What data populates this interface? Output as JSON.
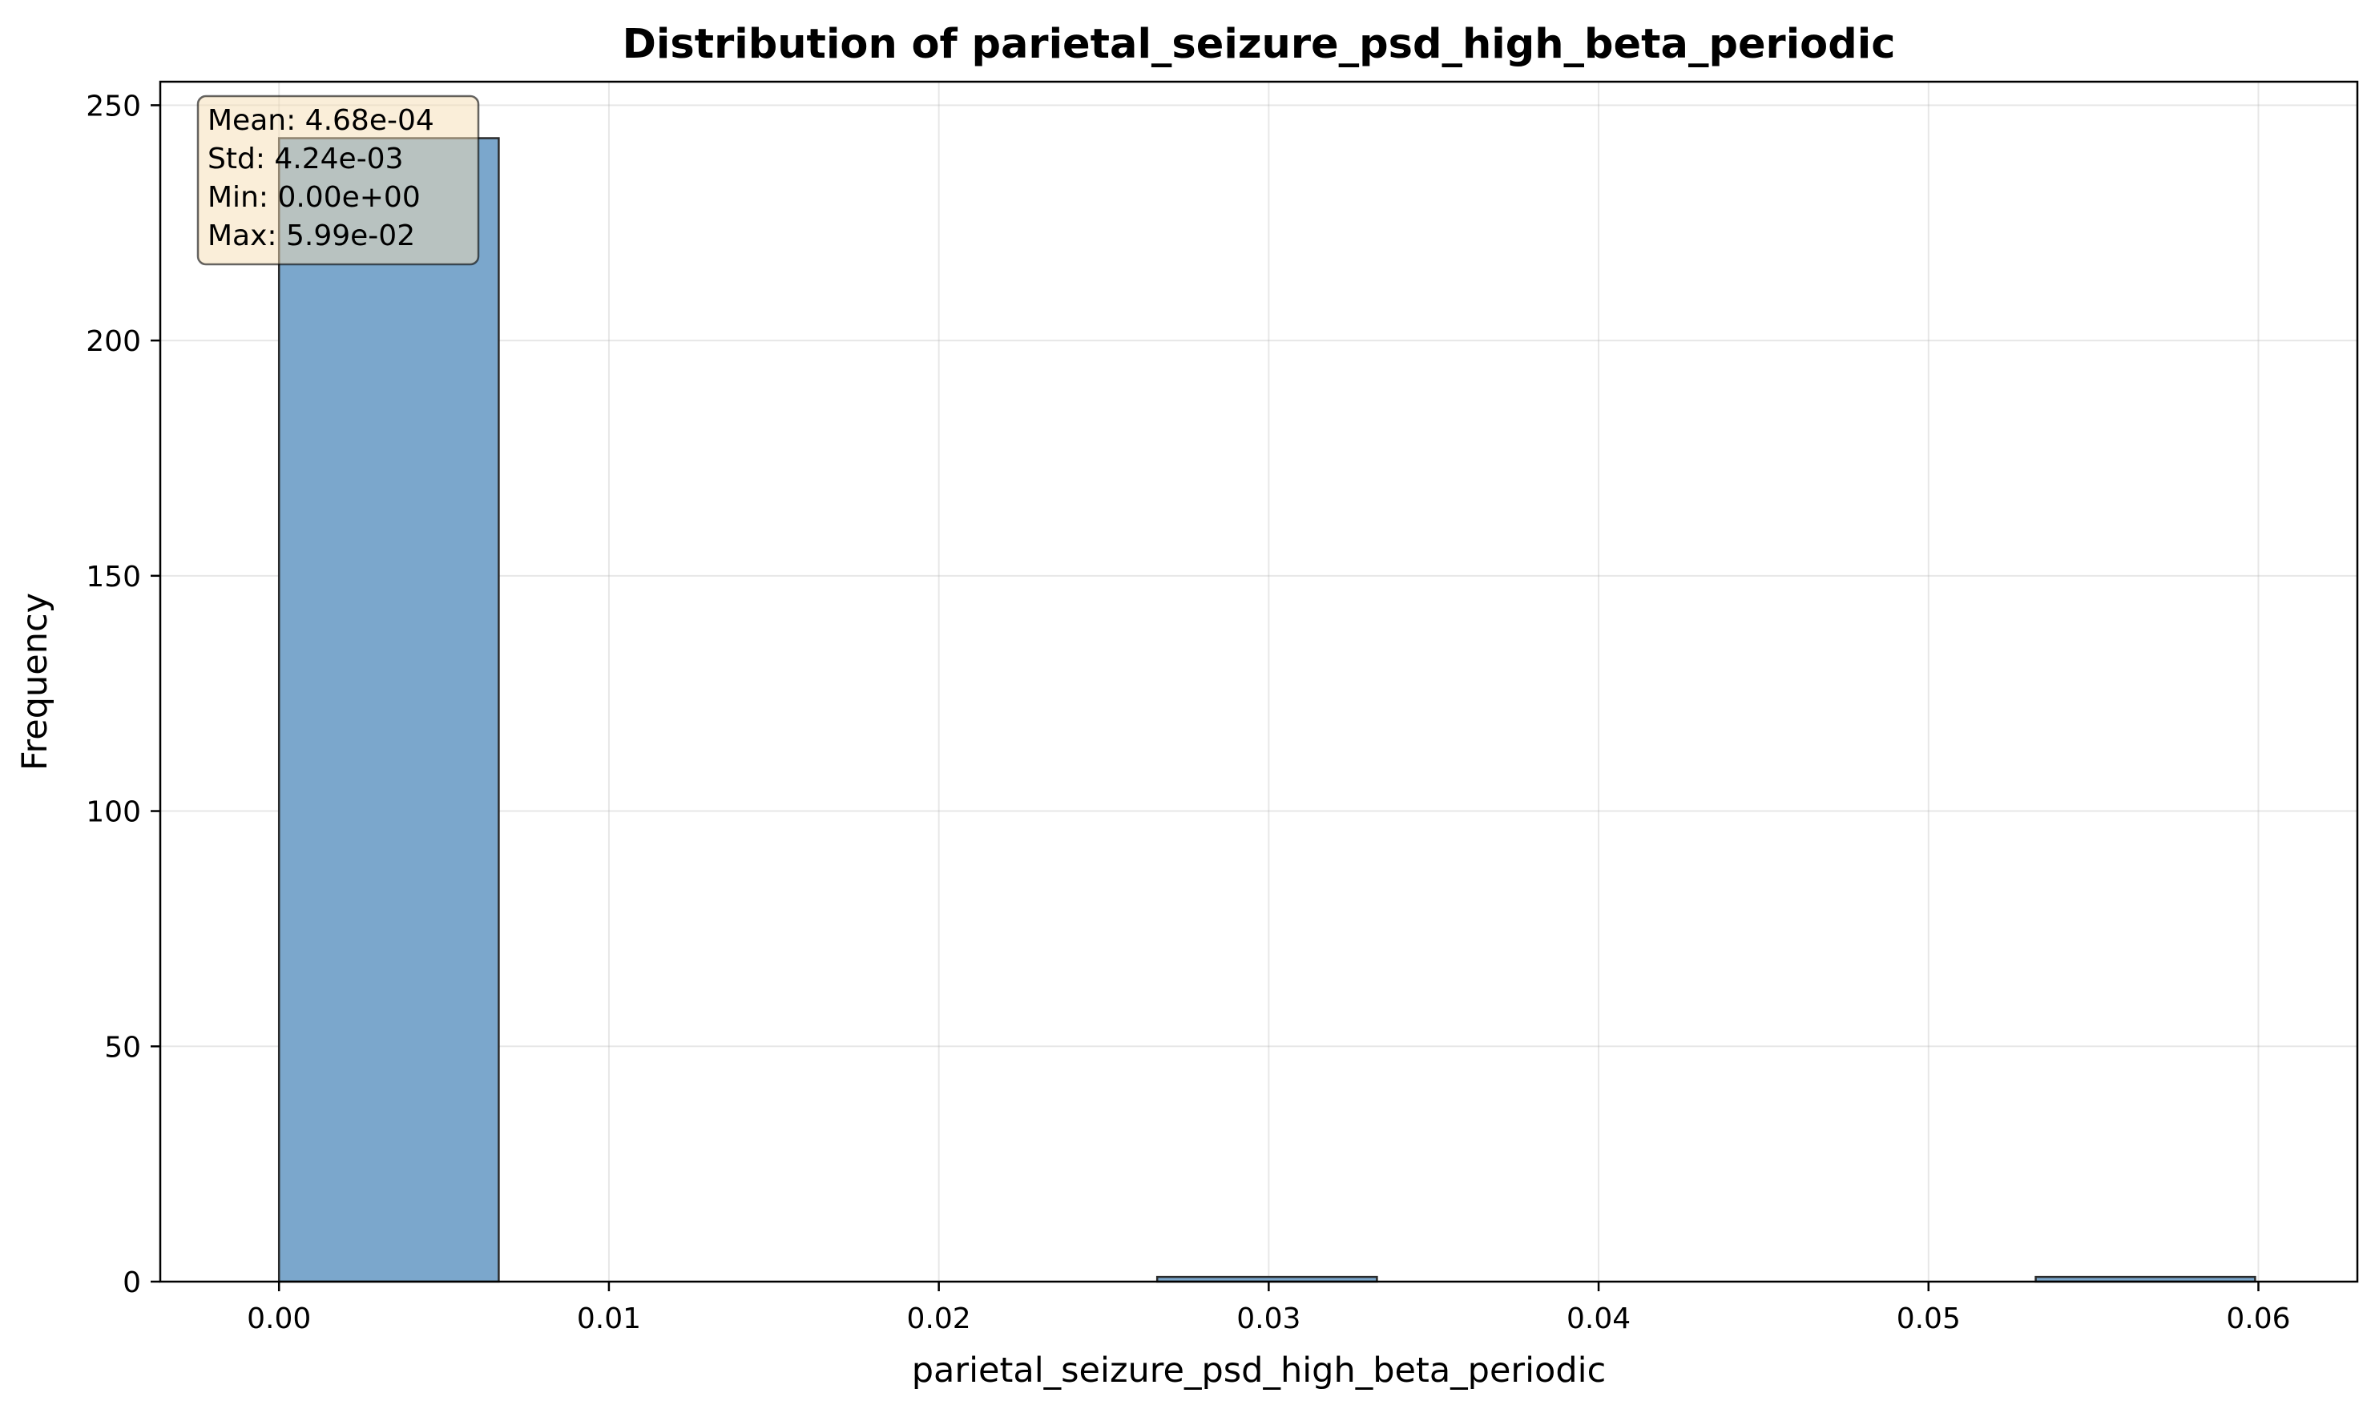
{
  "chart_data": {
    "type": "bar",
    "title": "Distribution of parietal_seizure_psd_high_beta_periodic",
    "xlabel": "parietal_seizure_psd_high_beta_periodic",
    "ylabel": "Frequency",
    "xlim": [
      -0.0036,
      0.063
    ],
    "ylim": [
      0,
      255
    ],
    "xticks": [
      0.0,
      0.01,
      0.02,
      0.03,
      0.04,
      0.05,
      0.06
    ],
    "xtick_labels": [
      "0.00",
      "0.01",
      "0.02",
      "0.03",
      "0.04",
      "0.05",
      "0.06"
    ],
    "yticks": [
      0,
      50,
      100,
      150,
      200,
      250
    ],
    "ytick_labels": [
      "0",
      "50",
      "100",
      "150",
      "200",
      "250"
    ],
    "grid": true,
    "bar_color": "#7ba7cc",
    "edge_color": "#2b2b2b",
    "bins": [
      {
        "x0": 0.0,
        "x1": 0.00666,
        "count": 243
      },
      {
        "x0": 0.00666,
        "x1": 0.01331,
        "count": 0
      },
      {
        "x0": 0.01331,
        "x1": 0.01997,
        "count": 0
      },
      {
        "x0": 0.01997,
        "x1": 0.02662,
        "count": 0
      },
      {
        "x0": 0.02662,
        "x1": 0.03328,
        "count": 1
      },
      {
        "x0": 0.03328,
        "x1": 0.03994,
        "count": 0
      },
      {
        "x0": 0.03994,
        "x1": 0.04659,
        "count": 0
      },
      {
        "x0": 0.04659,
        "x1": 0.05325,
        "count": 0
      },
      {
        "x0": 0.05325,
        "x1": 0.0599,
        "count": 1
      }
    ],
    "stats_box": {
      "lines": [
        "Mean: 4.68e-04",
        "Std: 4.24e-03",
        "Min: 0.00e+00",
        "Max: 5.99e-02"
      ],
      "background": "#f5deb3",
      "placement": "top-left"
    }
  }
}
